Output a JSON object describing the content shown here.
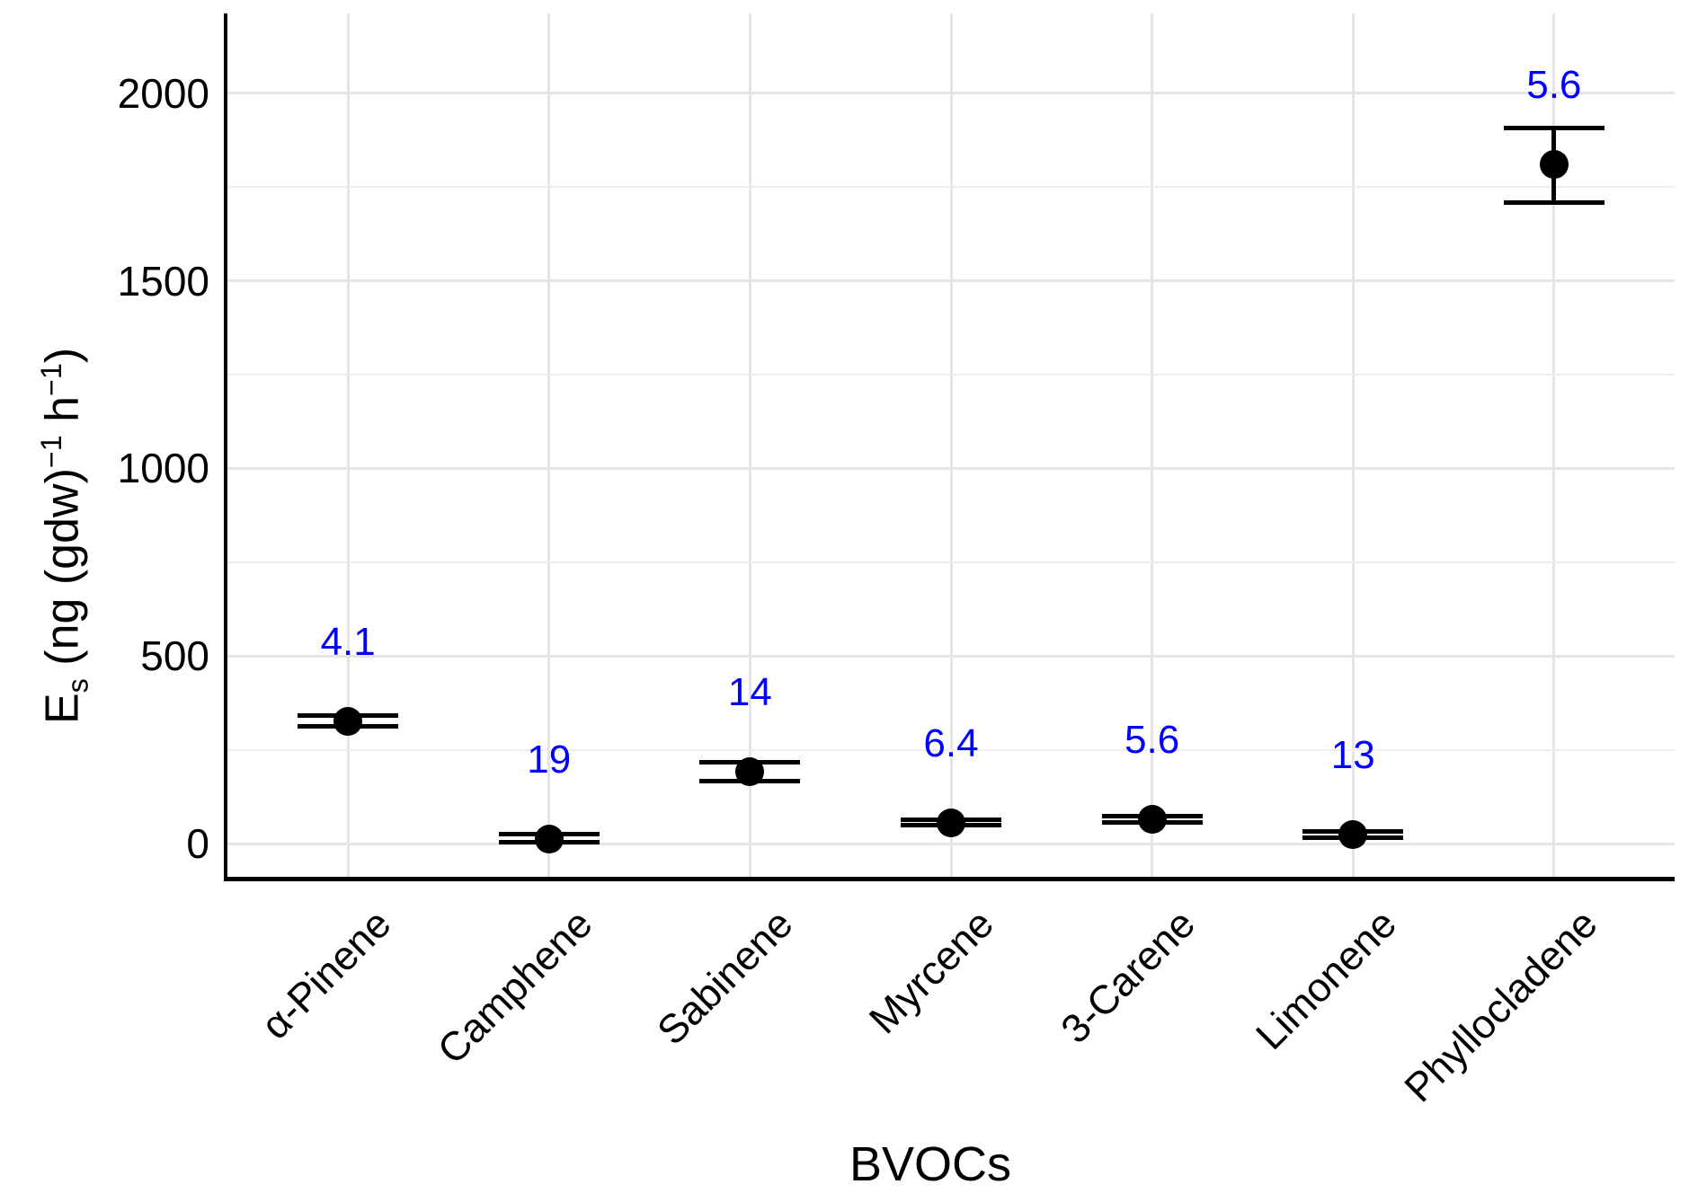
{
  "figure": {
    "background_color": "#ffffff",
    "axis_color": "#000000",
    "major_grid_color": "#e5e5e5",
    "minor_grid_color": "#ededed",
    "point_color": "#000000"
  },
  "chart_data": {
    "type": "scatter",
    "title": "",
    "xlabel": "BVOCs",
    "ylabel": "Es (ng (gdw)−1 h−1)",
    "ylabel_parts": {
      "main": "E",
      "sub": "s",
      "mid1": " (ng (gdw)",
      "sup1": "−1",
      "mid2": " h",
      "sup2": "−1",
      "tail": ")"
    },
    "categories": [
      "α-Pinene",
      "Camphene",
      "Sabinene",
      "Myrcene",
      "3-Carene",
      "Limonene",
      "Phyllocladene"
    ],
    "series": [
      {
        "name": "emission_rate_mean",
        "values": [
          327,
          13,
          193,
          57,
          66,
          25,
          1810
        ]
      },
      {
        "name": "errorbar_upper",
        "values": [
          341,
          25,
          217,
          65,
          75,
          34,
          1907
        ]
      },
      {
        "name": "errorbar_lower",
        "values": [
          313,
          5,
          167,
          49,
          57,
          16,
          1709
        ]
      }
    ],
    "point_labels": [
      "4.1",
      "19",
      "14",
      "6.4",
      "5.6",
      "13",
      "5.6"
    ],
    "point_label_color": "#0000ff",
    "yticks_major": [
      0,
      500,
      1000,
      1500,
      2000
    ],
    "ytick_labels": [
      "0",
      "500",
      "1000",
      "1500",
      "2000"
    ],
    "yticks_minor": [
      250,
      750,
      1250,
      1750
    ],
    "ylim": [
      -90,
      2212
    ],
    "grid": true,
    "legend": false
  }
}
